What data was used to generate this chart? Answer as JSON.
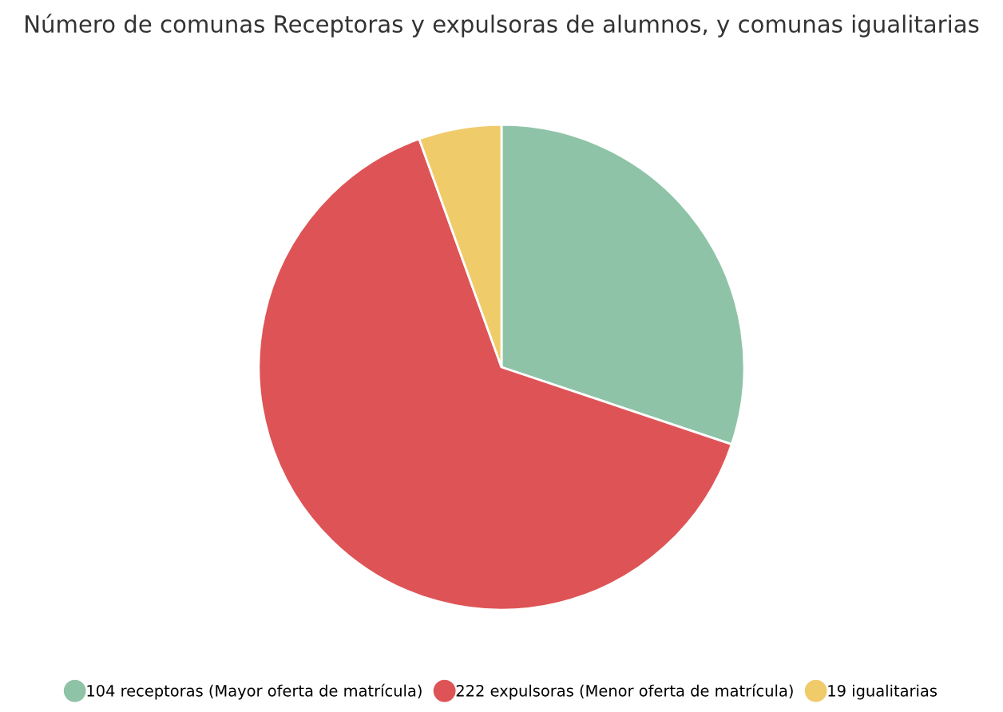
{
  "chart_data": {
    "type": "pie",
    "title": "Número de comunas Receptoras y expulsoras de alumnos, y comunas igualitarias",
    "categories": [
      "104 receptoras (Mayor oferta de matrícula)",
      "222 expulsoras (Menor oferta de matrícula)",
      "19 igualitarias"
    ],
    "values": [
      104,
      222,
      19
    ],
    "colors": [
      "#8fc3a8",
      "#de5456",
      "#efcb6a"
    ],
    "legend": "bottom"
  }
}
